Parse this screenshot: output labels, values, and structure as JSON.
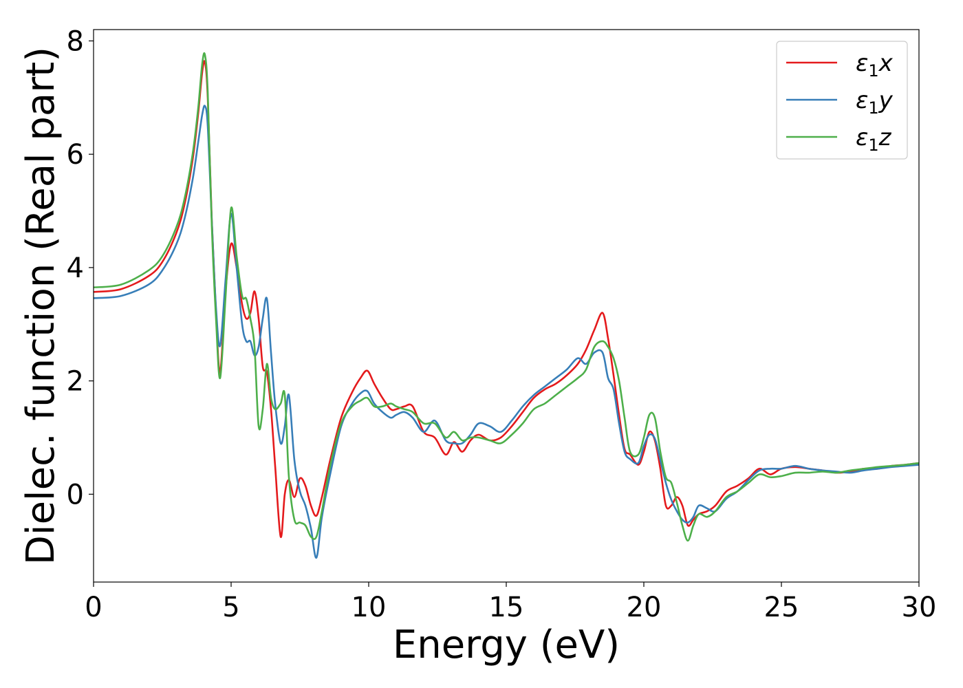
{
  "chart_data": {
    "type": "line",
    "title": "",
    "xlabel": "Energy (eV)",
    "ylabel": "Dielec. function (Real part)",
    "xlim": [
      0,
      30
    ],
    "ylim": [
      -1.55,
      8.2
    ],
    "xticks": [
      0,
      5,
      10,
      15,
      20,
      25,
      30
    ],
    "yticks": [
      0,
      2,
      4,
      6,
      8
    ],
    "grid": false,
    "legend_position": "top-right",
    "series": [
      {
        "name": "ε1x",
        "label_base": "ε",
        "label_sub": "1",
        "label_suffix": "x",
        "color": "#e41a1c",
        "x": [
          0,
          1,
          2,
          2.5,
          3,
          3.3,
          3.6,
          3.8,
          3.95,
          4.05,
          4.15,
          4.3,
          4.45,
          4.6,
          4.8,
          5.0,
          5.2,
          5.4,
          5.55,
          5.7,
          5.85,
          6.0,
          6.15,
          6.3,
          6.45,
          6.6,
          6.8,
          6.95,
          7.1,
          7.3,
          7.5,
          7.7,
          7.9,
          8.1,
          8.3,
          8.6,
          9.0,
          9.4,
          9.7,
          9.95,
          10.2,
          10.5,
          10.8,
          11.0,
          11.3,
          11.6,
          12.0,
          12.4,
          12.8,
          13.1,
          13.4,
          13.7,
          14.0,
          14.4,
          14.8,
          15.2,
          15.6,
          16.0,
          16.4,
          16.8,
          17.2,
          17.6,
          17.9,
          18.2,
          18.5,
          18.7,
          18.9,
          19.1,
          19.3,
          19.5,
          19.8,
          20.0,
          20.2,
          20.4,
          20.6,
          20.8,
          21.0,
          21.2,
          21.4,
          21.6,
          21.8,
          22.0,
          22.3,
          22.6,
          23.0,
          23.4,
          23.8,
          24.2,
          24.6,
          25.0,
          25.5,
          26.0,
          26.5,
          27.0,
          27.5,
          28.0,
          28.5,
          29.0,
          29.5,
          30.0
        ],
        "values": [
          3.57,
          3.62,
          3.85,
          4.1,
          4.6,
          5.1,
          5.9,
          6.7,
          7.45,
          7.62,
          7.0,
          4.8,
          3.2,
          2.15,
          3.6,
          4.42,
          4.0,
          3.35,
          3.1,
          3.2,
          3.58,
          3.1,
          2.25,
          2.15,
          1.5,
          0.5,
          -0.75,
          0.0,
          0.25,
          -0.05,
          0.28,
          0.15,
          -0.2,
          -0.38,
          -0.05,
          0.6,
          1.35,
          1.8,
          2.05,
          2.18,
          1.95,
          1.7,
          1.5,
          1.5,
          1.55,
          1.55,
          1.1,
          1.0,
          0.7,
          0.92,
          0.75,
          0.95,
          1.05,
          0.95,
          1.0,
          1.2,
          1.45,
          1.7,
          1.85,
          1.95,
          2.1,
          2.3,
          2.55,
          2.9,
          3.2,
          2.75,
          2.1,
          1.4,
          0.8,
          0.7,
          0.52,
          0.75,
          1.1,
          0.95,
          0.45,
          -0.2,
          -0.2,
          -0.05,
          -0.2,
          -0.55,
          -0.45,
          -0.35,
          -0.3,
          -0.2,
          0.05,
          0.15,
          0.28,
          0.45,
          0.35,
          0.45,
          0.48,
          0.45,
          0.42,
          0.38,
          0.4,
          0.45,
          0.45,
          0.5,
          0.52,
          0.55
        ]
      },
      {
        "name": "ε1y",
        "label_base": "ε",
        "label_sub": "1",
        "label_suffix": "y",
        "color": "#377eb8",
        "x": [
          0,
          1,
          2,
          2.5,
          3,
          3.3,
          3.6,
          3.8,
          3.95,
          4.05,
          4.15,
          4.3,
          4.45,
          4.6,
          4.8,
          5.0,
          5.2,
          5.4,
          5.55,
          5.7,
          5.85,
          6.0,
          6.15,
          6.3,
          6.45,
          6.6,
          6.8,
          6.95,
          7.1,
          7.3,
          7.5,
          7.7,
          7.9,
          8.1,
          8.3,
          8.6,
          9.0,
          9.4,
          9.7,
          9.95,
          10.2,
          10.5,
          10.8,
          11.0,
          11.3,
          11.6,
          12.0,
          12.4,
          12.8,
          13.1,
          13.4,
          13.7,
          14.0,
          14.4,
          14.8,
          15.2,
          15.6,
          16.0,
          16.4,
          16.8,
          17.2,
          17.6,
          17.9,
          18.2,
          18.5,
          18.7,
          18.9,
          19.1,
          19.3,
          19.5,
          19.8,
          20.0,
          20.2,
          20.4,
          20.6,
          20.8,
          21.0,
          21.2,
          21.4,
          21.6,
          21.8,
          22.0,
          22.3,
          22.6,
          23.0,
          23.4,
          23.8,
          24.2,
          24.6,
          25.0,
          25.5,
          26.0,
          26.5,
          27.0,
          27.5,
          28.0,
          28.5,
          29.0,
          29.5,
          30.0
        ],
        "values": [
          3.46,
          3.5,
          3.7,
          3.95,
          4.4,
          4.85,
          5.55,
          6.2,
          6.7,
          6.85,
          6.5,
          4.8,
          3.3,
          2.62,
          3.8,
          4.95,
          4.0,
          3.0,
          2.7,
          2.7,
          2.45,
          2.6,
          3.1,
          3.45,
          2.5,
          1.6,
          0.9,
          1.2,
          1.75,
          0.6,
          0.05,
          -0.2,
          -0.6,
          -1.12,
          -0.4,
          0.35,
          1.2,
          1.6,
          1.78,
          1.82,
          1.6,
          1.45,
          1.35,
          1.4,
          1.45,
          1.35,
          1.1,
          1.3,
          0.95,
          0.9,
          0.9,
          1.05,
          1.25,
          1.2,
          1.1,
          1.3,
          1.55,
          1.75,
          1.9,
          2.05,
          2.2,
          2.4,
          2.3,
          2.5,
          2.5,
          2.05,
          1.85,
          1.25,
          0.75,
          0.62,
          0.55,
          0.85,
          1.05,
          0.98,
          0.6,
          0.2,
          -0.1,
          -0.3,
          -0.45,
          -0.5,
          -0.4,
          -0.2,
          -0.25,
          -0.3,
          -0.08,
          0.05,
          0.25,
          0.42,
          0.45,
          0.45,
          0.5,
          0.45,
          0.42,
          0.4,
          0.38,
          0.42,
          0.45,
          0.48,
          0.5,
          0.52
        ]
      },
      {
        "name": "ε1z",
        "label_base": "ε",
        "label_sub": "1",
        "label_suffix": "z",
        "color": "#4daf4a",
        "x": [
          0,
          1,
          2,
          2.5,
          3,
          3.3,
          3.6,
          3.8,
          3.95,
          4.05,
          4.15,
          4.3,
          4.45,
          4.6,
          4.8,
          5.0,
          5.2,
          5.4,
          5.55,
          5.7,
          5.85,
          6.0,
          6.15,
          6.3,
          6.45,
          6.6,
          6.8,
          6.95,
          7.1,
          7.3,
          7.5,
          7.7,
          7.9,
          8.1,
          8.3,
          8.6,
          9.0,
          9.4,
          9.7,
          9.95,
          10.2,
          10.5,
          10.8,
          11.0,
          11.3,
          11.6,
          12.0,
          12.4,
          12.8,
          13.1,
          13.4,
          13.7,
          14.0,
          14.4,
          14.8,
          15.2,
          15.6,
          16.0,
          16.4,
          16.8,
          17.2,
          17.6,
          17.9,
          18.2,
          18.5,
          18.7,
          18.9,
          19.1,
          19.3,
          19.5,
          19.8,
          20.0,
          20.2,
          20.4,
          20.6,
          20.8,
          21.0,
          21.2,
          21.4,
          21.6,
          21.8,
          22.0,
          22.3,
          22.6,
          23.0,
          23.4,
          23.8,
          24.2,
          24.6,
          25.0,
          25.5,
          26.0,
          26.5,
          27.0,
          27.5,
          28.0,
          28.5,
          29.0,
          29.5,
          30.0
        ],
        "values": [
          3.65,
          3.7,
          3.95,
          4.2,
          4.7,
          5.2,
          6.0,
          6.8,
          7.6,
          7.75,
          7.1,
          4.7,
          3.1,
          2.05,
          3.5,
          5.05,
          4.2,
          3.5,
          3.45,
          3.1,
          2.6,
          1.2,
          1.5,
          2.3,
          1.7,
          1.5,
          1.6,
          1.75,
          0.3,
          -0.45,
          -0.5,
          -0.55,
          -0.75,
          -0.75,
          -0.3,
          0.5,
          1.25,
          1.55,
          1.65,
          1.7,
          1.55,
          1.55,
          1.6,
          1.55,
          1.5,
          1.45,
          1.25,
          1.25,
          1.0,
          1.1,
          0.95,
          1.0,
          1.0,
          0.95,
          0.9,
          1.05,
          1.25,
          1.5,
          1.6,
          1.75,
          1.9,
          2.05,
          2.2,
          2.6,
          2.7,
          2.6,
          2.4,
          2.0,
          1.35,
          0.75,
          0.7,
          1.0,
          1.4,
          1.35,
          0.75,
          0.3,
          0.2,
          -0.15,
          -0.55,
          -0.82,
          -0.55,
          -0.35,
          -0.4,
          -0.3,
          -0.05,
          0.05,
          0.2,
          0.35,
          0.3,
          0.32,
          0.38,
          0.38,
          0.4,
          0.38,
          0.42,
          0.45,
          0.48,
          0.5,
          0.52,
          0.55
        ]
      }
    ]
  }
}
